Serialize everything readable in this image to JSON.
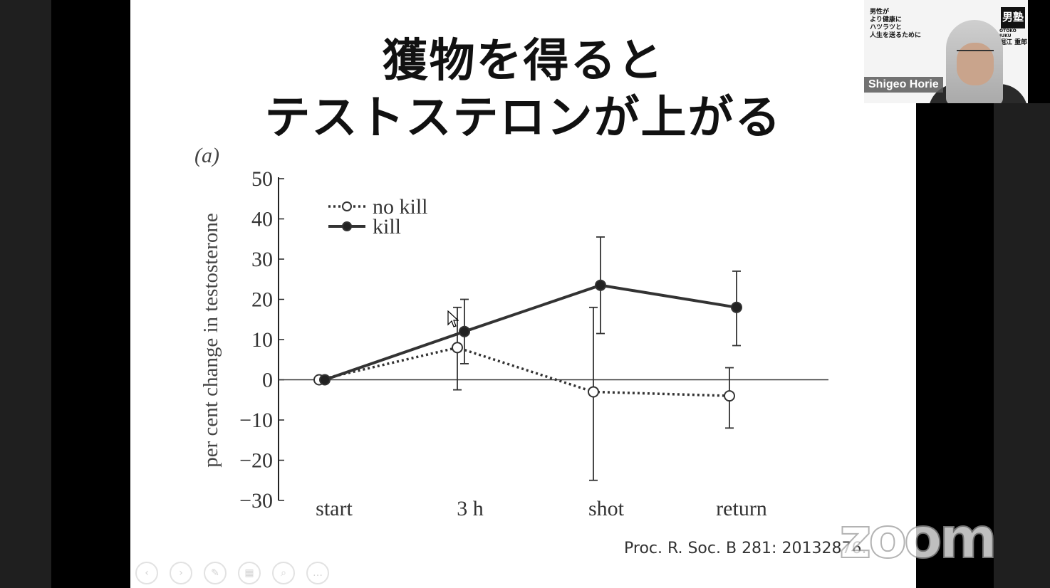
{
  "slide": {
    "title_line1": "獲物を得ると",
    "title_line2": "テストステロンが上がる",
    "citation": "Proc. R. Soc. B 281: 20132876."
  },
  "chart_data": {
    "type": "line",
    "panel_label": "(a)",
    "ylabel": "per cent change in testosterone",
    "xlabel": "",
    "categories": [
      "start",
      "3 h",
      "shot",
      "return"
    ],
    "ylim": [
      -30,
      50
    ],
    "yticks": [
      50,
      40,
      30,
      20,
      10,
      0,
      -10,
      -20,
      -30
    ],
    "ytick_labels": [
      "50",
      "40",
      "30",
      "20",
      "10",
      "0",
      "−10",
      "−20",
      "−30"
    ],
    "legend_position": "top-left",
    "series": [
      {
        "name": "no kill",
        "style": "dotted-open-circle",
        "values": [
          0,
          8,
          -3,
          -4
        ],
        "err_low": [
          0,
          -2.5,
          -25,
          -12
        ],
        "err_high": [
          0,
          18,
          18,
          3
        ]
      },
      {
        "name": "kill",
        "style": "solid-filled-circle",
        "values": [
          0,
          12,
          23.5,
          18
        ],
        "err_low": [
          0,
          4,
          11.5,
          8.5
        ],
        "err_high": [
          0,
          20,
          35.5,
          27
        ]
      }
    ]
  },
  "toolbar": {
    "buttons": [
      "prev",
      "next",
      "pen",
      "slides",
      "zoom-view",
      "more"
    ],
    "glyphs": [
      "‹",
      "›",
      "✎",
      "▦",
      "⌕",
      "…"
    ]
  },
  "video": {
    "participant_name": "Shigeo Horie",
    "banner_text": [
      "男性が",
      "より健康に",
      "ハツラツと",
      "人生を送るために"
    ],
    "logo": "男塾",
    "logo_sub": "OTOKO JUKU",
    "presenter_jp": "堀江 重郎"
  },
  "zoom_watermark": "zoom"
}
